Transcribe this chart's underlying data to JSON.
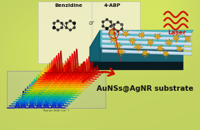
{
  "title": "AuNSs@AgNR substrate",
  "label_benzidine": "Benzidine",
  "label_4abp": "4-ABP",
  "label_or": "or",
  "label_laser": "Laser",
  "fig_width": 2.9,
  "fig_height": 1.89,
  "dpi": 100,
  "laser_color": "#cc1100",
  "arrow_color": "#cc1100",
  "title_fontsize": 7.5,
  "small_fontsize": 5.2,
  "substrate_top_color": "#4bbfc8",
  "substrate_side_color": "#1a5560",
  "substrate_dark_color": "#0a2830",
  "rod_color": "#b8d8e8",
  "rod_edge_color": "#6090a8",
  "nanostar_spike_color": "#c89010",
  "nanostar_core_color": "#d4a820",
  "mol_box_color": "#f5f0d8",
  "bg_green_yellow": "#c8d458",
  "spec_bg_color": "#c8d080"
}
